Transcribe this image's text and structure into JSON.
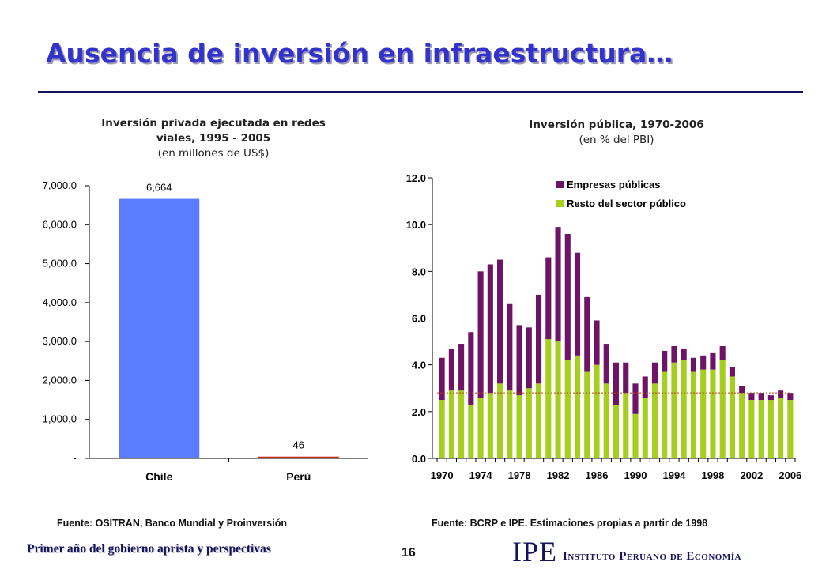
{
  "slide": {
    "title": "Ausencia de inversión en infraestructura…",
    "page_number": "16",
    "footer_left": "Primer año del gobierno aprista y perspectivas",
    "logo_text": "IPE",
    "logo_name": "Instituto Peruano de Economía"
  },
  "left_chart": {
    "title_line1": "Inversión privada ejecutada en redes",
    "title_line2": "viales, 1995 - 2005",
    "subtitle": "(en millones de US$)",
    "source": "Fuente: OSITRAN, Banco Mundial y Proinversión"
  },
  "right_chart": {
    "title": "Inversión pública, 1970-2006",
    "subtitle": "(en % del PBI)",
    "source": "Fuente: BCRP e IPE. Estimaciones propias a partir de 1998"
  },
  "colors": {
    "title_blue": "#3333cc",
    "navy": "#14145a",
    "bar_blue": "#5b7cff",
    "bar_red": "#cc2200",
    "empresas_purple": "#6e1466",
    "resto_green": "#a6ce1e",
    "reference_line": "#b43c1e"
  },
  "chart_data": [
    {
      "type": "bar",
      "categories": [
        "Chile",
        "Perú"
      ],
      "values": [
        6664,
        46
      ],
      "data_labels": [
        "6,664",
        "46"
      ],
      "bar_colors": [
        "#5b7cff",
        "#cc2200"
      ],
      "ylim": [
        0,
        7000
      ],
      "yticks": [
        0,
        1000,
        2000,
        3000,
        4000,
        5000,
        6000,
        7000
      ],
      "ytick_labels": [
        "-",
        "1,000.0",
        "2,000.0",
        "3,000.0",
        "4,000.0",
        "5,000.0",
        "6,000.0",
        "7,000.0"
      ],
      "grid": false,
      "legend": "none"
    },
    {
      "type": "bar",
      "stacked": true,
      "x": [
        1970,
        1971,
        1972,
        1973,
        1974,
        1975,
        1976,
        1977,
        1978,
        1979,
        1980,
        1981,
        1982,
        1983,
        1984,
        1985,
        1986,
        1987,
        1988,
        1989,
        1990,
        1991,
        1992,
        1993,
        1994,
        1995,
        1996,
        1997,
        1998,
        1999,
        2000,
        2001,
        2002,
        2003,
        2004,
        2005,
        2006
      ],
      "xtick_labels": [
        "1970",
        "1974",
        "1978",
        "1982",
        "1986",
        "1990",
        "1994",
        "1998",
        "2002",
        "2006"
      ],
      "series": [
        {
          "name": "Resto del sector público",
          "color": "#a6ce1e",
          "values": [
            2.5,
            2.9,
            2.9,
            2.3,
            2.6,
            2.8,
            3.2,
            2.9,
            2.7,
            3.0,
            3.2,
            5.1,
            5.0,
            4.2,
            4.4,
            3.7,
            4.0,
            3.2,
            2.3,
            2.8,
            1.9,
            2.6,
            3.2,
            3.7,
            4.1,
            4.2,
            3.7,
            3.8,
            3.8,
            4.2,
            3.5,
            2.8,
            2.5,
            2.5,
            2.5,
            2.6,
            2.5
          ]
        },
        {
          "name": "Empresas públicas",
          "color": "#6e1466",
          "values": [
            1.8,
            1.8,
            2.0,
            3.1,
            5.4,
            5.5,
            5.3,
            3.7,
            3.0,
            2.6,
            3.8,
            3.5,
            4.9,
            5.4,
            4.4,
            3.2,
            1.9,
            1.7,
            1.8,
            1.3,
            1.3,
            0.9,
            0.9,
            0.9,
            0.7,
            0.5,
            0.6,
            0.6,
            0.7,
            0.6,
            0.4,
            0.3,
            0.3,
            0.3,
            0.2,
            0.3,
            0.3
          ]
        }
      ],
      "reference_line": {
        "y": 2.8,
        "style": "dashed"
      },
      "ylim": [
        0,
        12
      ],
      "yticks": [
        0,
        2,
        4,
        6,
        8,
        10,
        12
      ],
      "ytick_labels": [
        "0.0",
        "2.0",
        "4.0",
        "6.0",
        "8.0",
        "10.0",
        "12.0"
      ],
      "grid": false,
      "legend": "top"
    }
  ]
}
